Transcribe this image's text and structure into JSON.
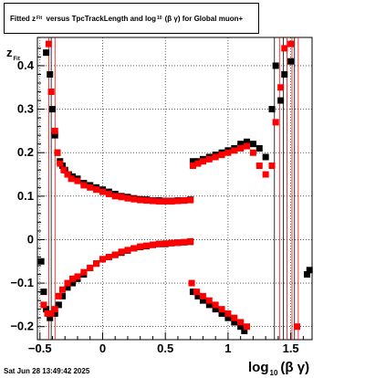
{
  "title": {
    "pre": "Fitted  z",
    "pre_sub": "Fit",
    "mid": "  versus TpcTrackLength and log",
    "mid_sub": "10",
    "post": "(β  γ) for Global muon+"
  },
  "y_axis_label": {
    "main": "z",
    "sub": "Fit"
  },
  "x_axis_label": {
    "main": "log",
    "sub": "10",
    "post": "(β γ)"
  },
  "date_stamp": "Sat Jun 28 13:49:42 2025",
  "colors": {
    "black_series": "#000000",
    "red_series": "#ff0000",
    "grid": "#000000"
  },
  "chart_data": {
    "type": "scatter",
    "xlim": [
      -0.52,
      1.67
    ],
    "ylim": [
      -0.23,
      0.465
    ],
    "x_ticks": [
      -0.5,
      0,
      0.5,
      1,
      1.5
    ],
    "x_tick_labels": [
      "−0.5",
      "0",
      "0.5",
      "1",
      "1.5"
    ],
    "y_ticks": [
      -0.2,
      -0.1,
      0,
      0.1,
      0.2,
      0.3,
      0.4
    ],
    "y_tick_labels": [
      "−0.2",
      "−0.1",
      "0",
      "0.1",
      "0.2",
      "0.3",
      "0.4"
    ],
    "grid": true,
    "series": [
      {
        "color": "black",
        "points": [
          [
            -0.45,
            0.43
          ],
          [
            -0.42,
            0.38
          ],
          [
            -0.4,
            0.3
          ],
          [
            -0.38,
            0.24
          ],
          [
            -0.36,
            0.2
          ],
          [
            -0.34,
            0.18
          ],
          [
            -0.32,
            0.17
          ],
          [
            -0.3,
            0.16
          ],
          [
            -0.27,
            0.15
          ],
          [
            -0.24,
            0.145
          ],
          [
            -0.2,
            0.14
          ],
          [
            -0.15,
            0.13
          ],
          [
            -0.1,
            0.125
          ],
          [
            -0.05,
            0.12
          ],
          [
            0,
            0.115
          ],
          [
            0.05,
            0.11
          ],
          [
            0.1,
            0.105
          ],
          [
            0.15,
            0.1
          ],
          [
            0.2,
            0.098
          ],
          [
            0.25,
            0.095
          ],
          [
            0.3,
            0.093
          ],
          [
            0.35,
            0.092
          ],
          [
            0.4,
            0.09
          ],
          [
            0.45,
            0.09
          ],
          [
            0.5,
            0.089
          ],
          [
            0.55,
            0.089
          ],
          [
            0.6,
            0.09
          ],
          [
            0.65,
            0.09
          ],
          [
            0.7,
            0.092
          ],
          [
            0.72,
            0.18
          ],
          [
            0.76,
            0.18
          ],
          [
            0.8,
            0.185
          ],
          [
            0.85,
            0.19
          ],
          [
            0.9,
            0.195
          ],
          [
            0.95,
            0.2
          ],
          [
            1.0,
            0.205
          ],
          [
            1.05,
            0.21
          ],
          [
            1.1,
            0.22
          ],
          [
            1.15,
            0.225
          ],
          [
            1.2,
            0.22
          ],
          [
            1.25,
            0.21
          ],
          [
            1.3,
            0.19
          ],
          [
            1.35,
            0.3
          ],
          [
            1.38,
            0.4
          ],
          [
            1.42,
            0.32
          ],
          [
            1.45,
            0.38
          ],
          [
            1.5,
            0.41
          ],
          [
            -0.49,
            -0.05
          ],
          [
            -0.47,
            -0.12
          ],
          [
            -0.45,
            -0.16
          ],
          [
            -0.42,
            -0.18
          ],
          [
            -0.38,
            -0.17
          ],
          [
            -0.35,
            -0.15
          ],
          [
            -0.32,
            -0.13
          ],
          [
            -0.28,
            -0.11
          ],
          [
            -0.24,
            -0.1
          ],
          [
            -0.2,
            -0.09
          ],
          [
            -0.15,
            -0.08
          ],
          [
            -0.1,
            -0.065
          ],
          [
            -0.05,
            -0.055
          ],
          [
            0,
            -0.045
          ],
          [
            0.05,
            -0.04
          ],
          [
            0.1,
            -0.035
          ],
          [
            0.15,
            -0.03
          ],
          [
            0.2,
            -0.025
          ],
          [
            0.25,
            -0.02
          ],
          [
            0.3,
            -0.017
          ],
          [
            0.35,
            -0.015
          ],
          [
            0.4,
            -0.012
          ],
          [
            0.45,
            -0.01
          ],
          [
            0.5,
            -0.01
          ],
          [
            0.55,
            -0.008
          ],
          [
            0.6,
            -0.007
          ],
          [
            0.65,
            -0.006
          ],
          [
            0.7,
            -0.005
          ],
          [
            0.72,
            -0.12
          ],
          [
            0.76,
            -0.13
          ],
          [
            0.8,
            -0.14
          ],
          [
            0.85,
            -0.15
          ],
          [
            0.9,
            -0.16
          ],
          [
            0.95,
            -0.17
          ],
          [
            1.0,
            -0.18
          ],
          [
            1.05,
            -0.19
          ],
          [
            1.1,
            -0.2
          ],
          [
            1.13,
            -0.21
          ],
          [
            1.63,
            -0.08
          ],
          [
            1.65,
            -0.07
          ]
        ]
      },
      {
        "color": "red",
        "points": [
          [
            -0.43,
            0.45
          ],
          [
            -0.41,
            0.34
          ],
          [
            -0.38,
            0.25
          ],
          [
            -0.36,
            0.2
          ],
          [
            -0.34,
            0.175
          ],
          [
            -0.31,
            0.16
          ],
          [
            -0.28,
            0.15
          ],
          [
            -0.25,
            0.14
          ],
          [
            -0.2,
            0.135
          ],
          [
            -0.15,
            0.125
          ],
          [
            -0.1,
            0.12
          ],
          [
            -0.05,
            0.115
          ],
          [
            0,
            0.11
          ],
          [
            0.05,
            0.105
          ],
          [
            0.1,
            0.1
          ],
          [
            0.15,
            0.098
          ],
          [
            0.2,
            0.095
          ],
          [
            0.25,
            0.093
          ],
          [
            0.3,
            0.091
          ],
          [
            0.35,
            0.09
          ],
          [
            0.4,
            0.089
          ],
          [
            0.45,
            0.088
          ],
          [
            0.5,
            0.088
          ],
          [
            0.55,
            0.088
          ],
          [
            0.6,
            0.089
          ],
          [
            0.65,
            0.09
          ],
          [
            0.7,
            0.091
          ],
          [
            0.72,
            0.17
          ],
          [
            0.76,
            0.175
          ],
          [
            0.8,
            0.18
          ],
          [
            0.85,
            0.185
          ],
          [
            0.9,
            0.19
          ],
          [
            0.95,
            0.195
          ],
          [
            1.0,
            0.2
          ],
          [
            1.05,
            0.205
          ],
          [
            1.1,
            0.21
          ],
          [
            1.15,
            0.215
          ],
          [
            1.2,
            0.2
          ],
          [
            1.25,
            0.17
          ],
          [
            1.3,
            0.15
          ],
          [
            1.35,
            0.17
          ],
          [
            1.38,
            0.27
          ],
          [
            1.42,
            0.35
          ],
          [
            1.45,
            0.44
          ],
          [
            1.5,
            0.45
          ],
          [
            -0.47,
            -0.15
          ],
          [
            -0.44,
            -0.17
          ],
          [
            -0.41,
            -0.17
          ],
          [
            -0.38,
            -0.16
          ],
          [
            -0.35,
            -0.13
          ],
          [
            -0.32,
            -0.115
          ],
          [
            -0.28,
            -0.1
          ],
          [
            -0.24,
            -0.09
          ],
          [
            -0.2,
            -0.085
          ],
          [
            -0.15,
            -0.075
          ],
          [
            -0.1,
            -0.065
          ],
          [
            -0.05,
            -0.055
          ],
          [
            0,
            -0.045
          ],
          [
            0.05,
            -0.04
          ],
          [
            0.1,
            -0.035
          ],
          [
            0.15,
            -0.028
          ],
          [
            0.2,
            -0.024
          ],
          [
            0.25,
            -0.02
          ],
          [
            0.3,
            -0.016
          ],
          [
            0.35,
            -0.014
          ],
          [
            0.4,
            -0.012
          ],
          [
            0.45,
            -0.01
          ],
          [
            0.5,
            -0.009
          ],
          [
            0.55,
            -0.008
          ],
          [
            0.6,
            -0.007
          ],
          [
            0.65,
            -0.006
          ],
          [
            0.7,
            -0.004
          ],
          [
            0.71,
            -0.1
          ],
          [
            0.75,
            -0.12
          ],
          [
            0.8,
            -0.13
          ],
          [
            0.85,
            -0.14
          ],
          [
            0.9,
            -0.15
          ],
          [
            0.95,
            -0.16
          ],
          [
            1.0,
            -0.17
          ],
          [
            1.05,
            -0.18
          ],
          [
            1.1,
            -0.19
          ],
          [
            1.15,
            -0.2
          ],
          [
            1.55,
            -0.2
          ]
        ]
      }
    ]
  }
}
